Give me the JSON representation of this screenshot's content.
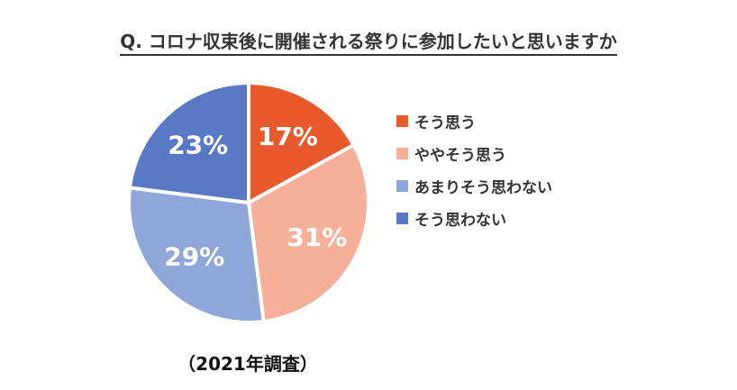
{
  "chart_data": {
    "type": "pie",
    "title": "Q. コロナ収束後に開催される祭りに参加したいと思いますか",
    "categories": [
      "そう思う",
      "ややそう思う",
      "あまりそう思わない",
      "そう思わない"
    ],
    "values": [
      17,
      31,
      29,
      23
    ],
    "value_labels": [
      "17%",
      "31%",
      "29%",
      "23%"
    ],
    "colors": [
      "#e85a2c",
      "#f6b09a",
      "#8ea7d8",
      "#5a79c4"
    ],
    "legend_position": "right",
    "annotation": "（2021年調査）"
  }
}
